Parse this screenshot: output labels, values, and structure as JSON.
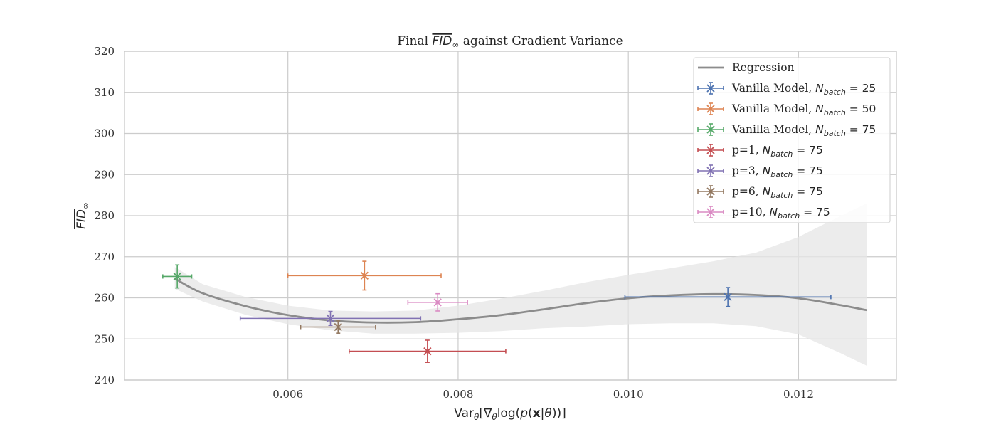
{
  "chart_data": {
    "type": "scatter",
    "title": "Final FID∞ against Gradient Variance",
    "xlabel": "Varθ[∇θlog(p(x|θ))]",
    "ylabel": "FID∞",
    "xlim": [
      0.00408,
      0.01315
    ],
    "ylim": [
      240,
      320
    ],
    "xticks": [
      0.006,
      0.008,
      0.01,
      0.012
    ],
    "xtick_labels": [
      "0.006",
      "0.008",
      "0.010",
      "0.012"
    ],
    "yticks": [
      240,
      250,
      260,
      270,
      280,
      290,
      300,
      310,
      320
    ],
    "ytick_labels": [
      "240",
      "250",
      "260",
      "270",
      "280",
      "290",
      "300",
      "310",
      "320"
    ],
    "grid": true,
    "legend_position": "top-right",
    "regression": {
      "name": "Regression",
      "color": "#8c8c8c",
      "x": [
        0.00467,
        0.005,
        0.0055,
        0.006,
        0.0065,
        0.007,
        0.0075,
        0.008,
        0.0085,
        0.009,
        0.0095,
        0.01,
        0.0105,
        0.011,
        0.0115,
        0.012,
        0.0125,
        0.0128
      ],
      "y": [
        264.7,
        261.1,
        258.0,
        255.8,
        254.5,
        254.0,
        254.1,
        254.8,
        255.8,
        257.2,
        258.7,
        259.9,
        260.6,
        260.9,
        260.7,
        259.9,
        258.2,
        257.0
      ],
      "ci_lower": [
        262.2,
        259.1,
        255.9,
        253.6,
        252.1,
        251.3,
        251.3,
        251.5,
        251.9,
        252.6,
        253.0,
        253.6,
        253.8,
        253.8,
        253.1,
        251.1,
        246.5,
        243.5
      ],
      "ci_upper": [
        267.5,
        263.3,
        260.2,
        258.1,
        256.9,
        256.7,
        256.9,
        258.1,
        259.8,
        261.7,
        263.8,
        265.6,
        267.2,
        268.9,
        271.0,
        274.8,
        280.0,
        283.0
      ]
    },
    "series": [
      {
        "name": "Vanilla Model, ",
        "sub": "N",
        "subsub": "batch",
        "eq": " = 25",
        "color": "#4c72b0",
        "x": 0.01117,
        "y": 260.2,
        "xerr": 0.00121,
        "yerr": 2.3
      },
      {
        "name": "Vanilla Model, ",
        "sub": "N",
        "subsub": "batch",
        "eq": " = 50",
        "color": "#dd8452",
        "x": 0.0069,
        "y": 265.4,
        "xerr": 0.0009,
        "yerr": 3.5
      },
      {
        "name": "Vanilla Model, ",
        "sub": "N",
        "subsub": "batch",
        "eq": " = 75",
        "color": "#55a868",
        "x": 0.0047,
        "y": 265.2,
        "xerr": 0.00017,
        "yerr": 2.8
      },
      {
        "name": "p=1, ",
        "sub": "N",
        "subsub": "batch",
        "eq": " = 75",
        "color": "#c44e52",
        "x": 0.00764,
        "y": 247.0,
        "xerr": 0.00092,
        "yerr": 2.7
      },
      {
        "name": "p=3, ",
        "sub": "N",
        "subsub": "batch",
        "eq": " = 75",
        "color": "#8172b3",
        "x": 0.0065,
        "y": 255.0,
        "xerr": 0.00106,
        "yerr": 1.7
      },
      {
        "name": "p=6, ",
        "sub": "N",
        "subsub": "batch",
        "eq": " = 75",
        "color": "#937860",
        "x": 0.00659,
        "y": 252.9,
        "xerr": 0.00044,
        "yerr": 1.5
      },
      {
        "name": "p=10, ",
        "sub": "N",
        "subsub": "batch",
        "eq": " = 75",
        "color": "#da8bc3",
        "x": 0.00776,
        "y": 258.9,
        "xerr": 0.00035,
        "yerr": 2.1
      }
    ]
  }
}
